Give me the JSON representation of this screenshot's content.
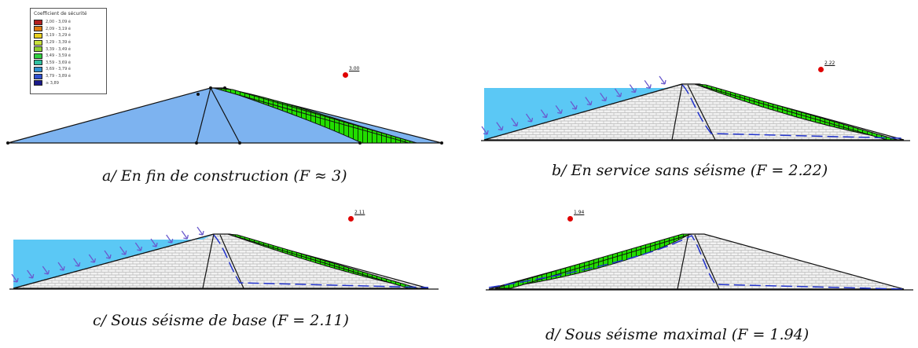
{
  "legend": {
    "title": "Coefficient de sécurité",
    "items": [
      {
        "label": "2,00 - 3,09 é",
        "color": "#b32020"
      },
      {
        "label": "2,09 - 3,19 é",
        "color": "#e07a10"
      },
      {
        "label": "3,19 - 3,29 é",
        "color": "#e8d020"
      },
      {
        "label": "3,29 - 3,39 é",
        "color": "#c8e03a"
      },
      {
        "label": "3,39 - 3,49 é",
        "color": "#8fd030"
      },
      {
        "label": "3,49 - 3,59 é",
        "color": "#30d040"
      },
      {
        "label": "3,59 - 3,69 é",
        "color": "#30c0a0"
      },
      {
        "label": "3,69 - 3,79 é",
        "color": "#3090d0"
      },
      {
        "label": "3,79 - 3,89 é",
        "color": "#3050d0"
      },
      {
        "label": "≥ 3,89",
        "color": "#1a1a8a"
      }
    ]
  },
  "panels": [
    {
      "id": "a",
      "caption": "a/ En fin de construction (F ≈ 3)",
      "factor_label": "3.00"
    },
    {
      "id": "b",
      "caption": "b/ En service sans séisme (F = 2.22)",
      "factor_label": "2.22"
    },
    {
      "id": "c",
      "caption": "c/ Sous séisme de base (F = 2.11)",
      "factor_label": "2.11"
    },
    {
      "id": "d",
      "caption": "d/ Sous séisme maximal (F = 1.94)",
      "factor_label": "1.94"
    }
  ],
  "colors": {
    "water": "#5bc8f5",
    "dam_fill_a": "#7db3f0",
    "slip_mass": "#22dd00",
    "mesh": "#d8d8d8",
    "phreatic": "#2233cc",
    "arrow": "#6a5acd",
    "factor_dot": "#e00000"
  }
}
